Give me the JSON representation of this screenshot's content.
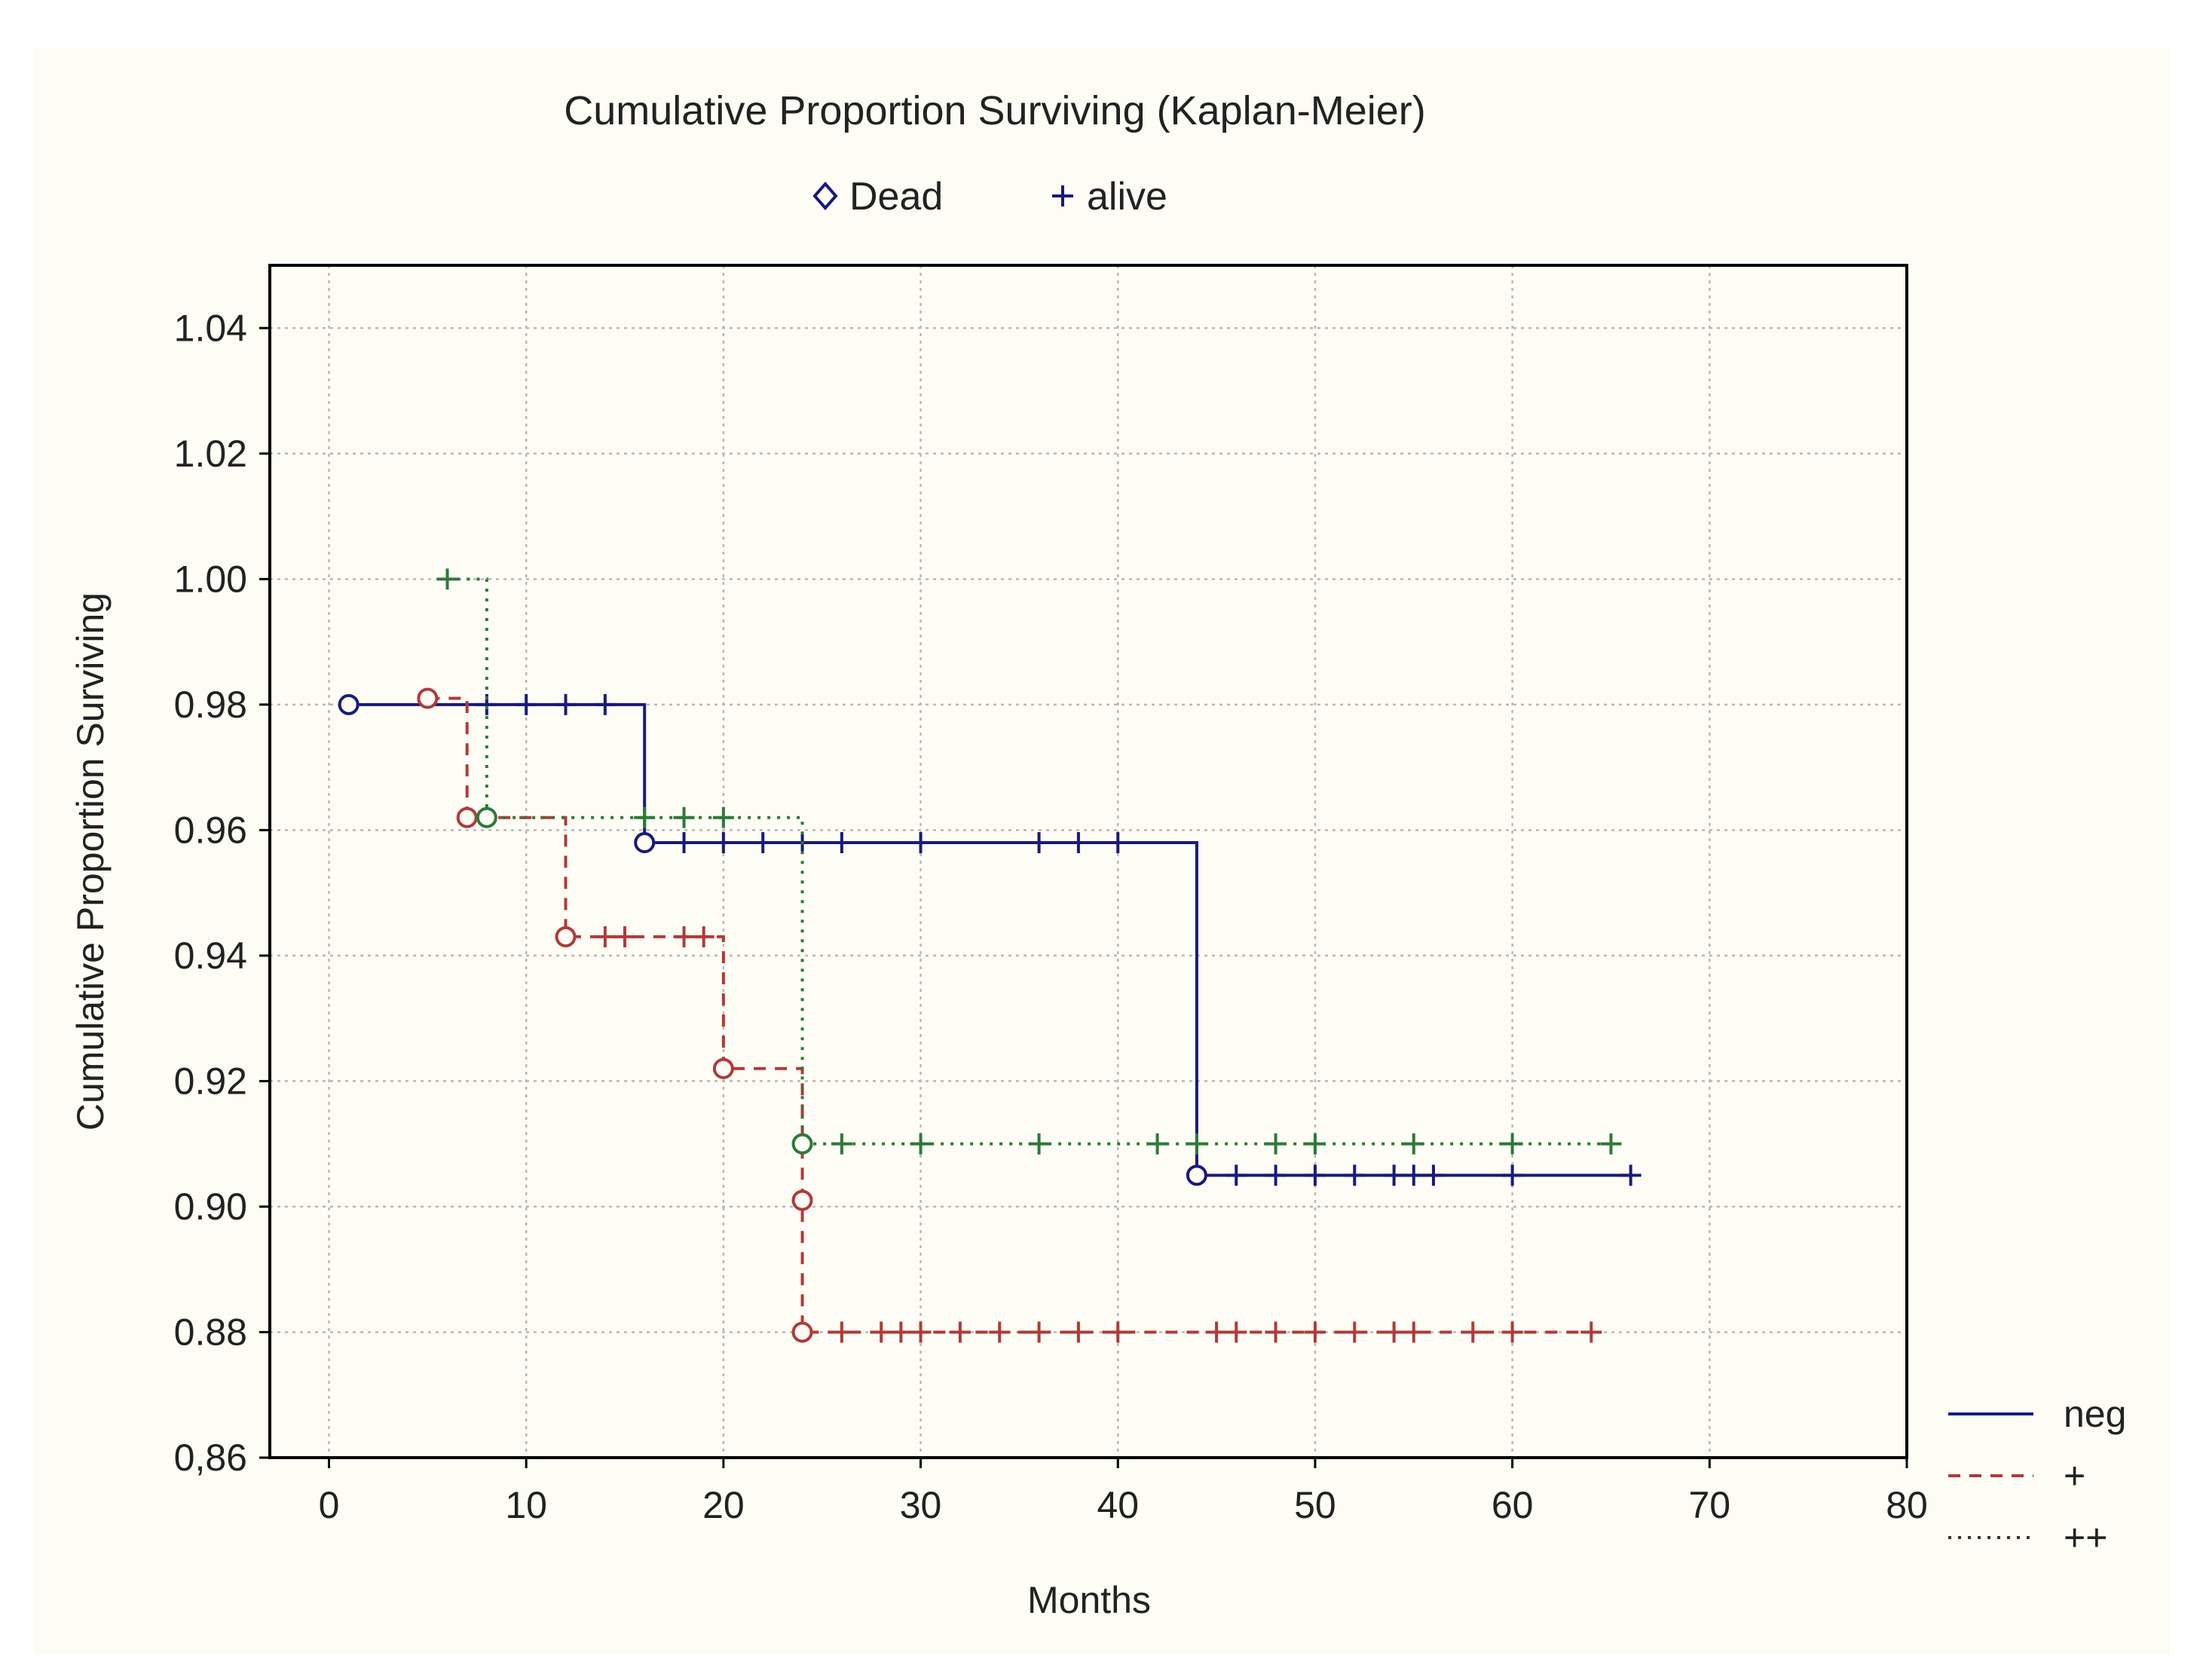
{
  "chart_data": {
    "type": "line",
    "subtype": "kaplan-meier-step",
    "title": "Cumulative Proportion Surviving (Kaplan-Meier)",
    "xlabel": "Months",
    "ylabel": "Cumulative Proportion Surviving",
    "xlim": [
      -3,
      80
    ],
    "ylim": [
      0.86,
      1.05
    ],
    "xticks": [
      0,
      10,
      20,
      30,
      40,
      50,
      60,
      70,
      80
    ],
    "yticks": [
      0.86,
      0.88,
      0.9,
      0.92,
      0.94,
      0.96,
      0.98,
      1.0,
      1.02,
      1.04
    ],
    "ytick_labels": [
      "0,86",
      "0.88",
      "0.90",
      "0.92",
      "0.94",
      "0.96",
      "0.98",
      "1.00",
      "1.02",
      "1.04"
    ],
    "xtick_labels": [
      "0",
      "10",
      "20",
      "30",
      "40",
      "50",
      "60",
      "70",
      "80"
    ],
    "grid": true,
    "marker_legend": [
      {
        "symbol": "◇",
        "label": "Dead"
      },
      {
        "symbol": "+",
        "label": "alive"
      }
    ],
    "legend_position": "bottom-right",
    "series": [
      {
        "name": "neg",
        "color": "#1a1a7a",
        "line_style": "solid",
        "steps": [
          [
            1,
            0.98
          ],
          [
            16,
            0.98
          ],
          [
            16,
            0.958
          ],
          [
            44,
            0.958
          ],
          [
            44,
            0.905
          ],
          [
            66,
            0.905
          ]
        ],
        "dead": [
          [
            1,
            0.98
          ],
          [
            16,
            0.958
          ],
          [
            44,
            0.905
          ]
        ],
        "alive": [
          [
            8,
            0.98
          ],
          [
            10,
            0.98
          ],
          [
            12,
            0.98
          ],
          [
            14,
            0.98
          ],
          [
            18,
            0.958
          ],
          [
            20,
            0.958
          ],
          [
            22,
            0.958
          ],
          [
            24,
            0.958
          ],
          [
            26,
            0.958
          ],
          [
            30,
            0.958
          ],
          [
            36,
            0.958
          ],
          [
            38,
            0.958
          ],
          [
            40,
            0.958
          ],
          [
            46,
            0.905
          ],
          [
            48,
            0.905
          ],
          [
            50,
            0.905
          ],
          [
            52,
            0.905
          ],
          [
            54,
            0.905
          ],
          [
            55,
            0.905
          ],
          [
            56,
            0.905
          ],
          [
            60,
            0.905
          ],
          [
            66,
            0.905
          ]
        ]
      },
      {
        "name": "+",
        "color": "#b03a3a",
        "line_style": "dashed",
        "steps": [
          [
            5,
            0.981
          ],
          [
            7,
            0.981
          ],
          [
            7,
            0.962
          ],
          [
            12,
            0.962
          ],
          [
            12,
            0.943
          ],
          [
            20,
            0.943
          ],
          [
            20,
            0.922
          ],
          [
            24,
            0.922
          ],
          [
            24,
            0.88
          ],
          [
            64,
            0.88
          ]
        ],
        "dead": [
          [
            5,
            0.981
          ],
          [
            7,
            0.962
          ],
          [
            12,
            0.943
          ],
          [
            20,
            0.922
          ],
          [
            24,
            0.901
          ],
          [
            24,
            0.88
          ]
        ],
        "alive": [
          [
            14,
            0.943
          ],
          [
            15,
            0.943
          ],
          [
            18,
            0.943
          ],
          [
            19,
            0.943
          ],
          [
            26,
            0.88
          ],
          [
            28,
            0.88
          ],
          [
            29,
            0.88
          ],
          [
            30,
            0.88
          ],
          [
            32,
            0.88
          ],
          [
            34,
            0.88
          ],
          [
            36,
            0.88
          ],
          [
            38,
            0.88
          ],
          [
            40,
            0.88
          ],
          [
            45,
            0.88
          ],
          [
            46,
            0.88
          ],
          [
            48,
            0.88
          ],
          [
            50,
            0.88
          ],
          [
            52,
            0.88
          ],
          [
            54,
            0.88
          ],
          [
            55,
            0.88
          ],
          [
            58,
            0.88
          ],
          [
            60,
            0.88
          ],
          [
            64,
            0.88
          ]
        ]
      },
      {
        "name": "++",
        "color": "#2e7a3a",
        "line_style": "dotted",
        "steps": [
          [
            6,
            1.0
          ],
          [
            8,
            1.0
          ],
          [
            8,
            0.962
          ],
          [
            24,
            0.962
          ],
          [
            24,
            0.91
          ],
          [
            65,
            0.91
          ]
        ],
        "dead": [
          [
            8,
            0.962
          ],
          [
            24,
            0.91
          ]
        ],
        "alive": [
          [
            6,
            1.0
          ],
          [
            16,
            0.962
          ],
          [
            18,
            0.962
          ],
          [
            20,
            0.962
          ],
          [
            26,
            0.91
          ],
          [
            30,
            0.91
          ],
          [
            36,
            0.91
          ],
          [
            42,
            0.91
          ],
          [
            44,
            0.91
          ],
          [
            48,
            0.91
          ],
          [
            50,
            0.91
          ],
          [
            55,
            0.91
          ],
          [
            60,
            0.91
          ],
          [
            65,
            0.91
          ]
        ]
      }
    ]
  }
}
